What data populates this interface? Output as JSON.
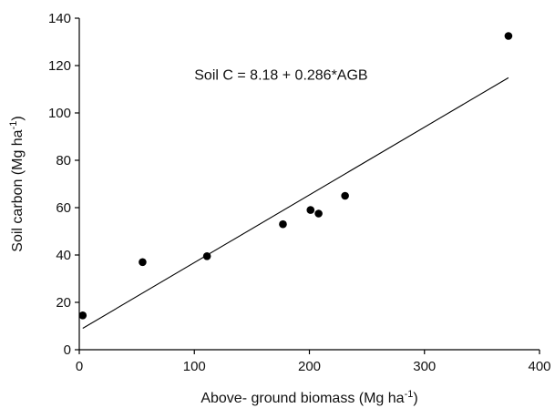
{
  "chart_data": {
    "type": "scatter",
    "title": "",
    "xlabel": {
      "text": "Above- ground biomass (Mg ha",
      "sup": "-1",
      "close": ")"
    },
    "ylabel": {
      "text": "Soil carbon (Mg ha",
      "sup": "-1",
      "close": ")"
    },
    "xlim": [
      0,
      400
    ],
    "ylim": [
      0,
      140
    ],
    "xticks": [
      0,
      100,
      200,
      300,
      400
    ],
    "yticks": [
      0,
      20,
      40,
      60,
      80,
      100,
      120,
      140
    ],
    "grid": false,
    "legend": "none",
    "series": [
      {
        "x": [
          3,
          55,
          111,
          177,
          201,
          208,
          231,
          373
        ],
        "y": [
          14.5,
          37,
          39.5,
          53,
          59,
          57.5,
          65,
          132.5
        ]
      }
    ],
    "trendline": {
      "intercept": 8.18,
      "slope": 0.286,
      "x_range": [
        3,
        373
      ]
    },
    "annotation": {
      "text": "Soil C = 8.18 + 0.286*AGB",
      "x": 100,
      "y": 114
    }
  }
}
